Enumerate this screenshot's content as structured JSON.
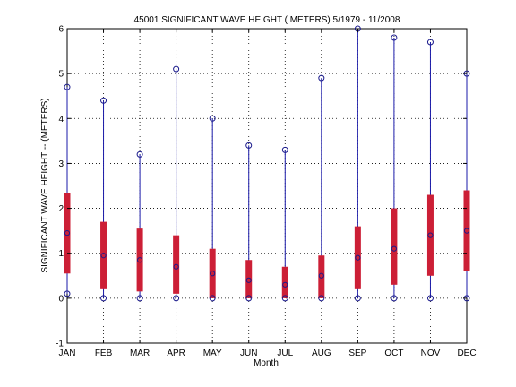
{
  "chart_data": {
    "type": "box",
    "title": "45001  SIGNIFICANT WAVE HEIGHT ( METERS) 5/1979 - 11/2008",
    "xlabel": "Month",
    "ylabel": "SIGNIFICANT WAVE HEIGHT -- (METERS)",
    "ylim": [
      -1,
      6
    ],
    "yticks": [
      "-1",
      "0",
      "1",
      "2",
      "3",
      "4",
      "5",
      "6"
    ],
    "grid": true,
    "categories": [
      "JAN",
      "FEB",
      "MAR",
      "APR",
      "MAY",
      "JUN",
      "JUL",
      "AUG",
      "SEP",
      "OCT",
      "NOV",
      "DEC"
    ],
    "min": [
      0.1,
      0.0,
      0.0,
      0.0,
      0.0,
      0.0,
      0.0,
      0.0,
      0.0,
      0.0,
      0.0,
      0.0
    ],
    "q1": [
      0.55,
      0.2,
      0.15,
      0.1,
      0.0,
      0.0,
      0.0,
      0.0,
      0.2,
      0.3,
      0.5,
      0.6
    ],
    "median": [
      1.45,
      0.95,
      0.85,
      0.7,
      0.55,
      0.4,
      0.3,
      0.5,
      0.9,
      1.1,
      1.4,
      1.5
    ],
    "q3": [
      2.35,
      1.7,
      1.55,
      1.4,
      1.1,
      0.85,
      0.7,
      0.95,
      1.6,
      2.0,
      2.3,
      2.4
    ],
    "max": [
      4.7,
      4.4,
      3.2,
      5.1,
      4.0,
      3.4,
      3.3,
      4.9,
      6.0,
      5.8,
      5.7,
      5.0
    ],
    "colors": {
      "whisker": "#1a1aa8",
      "box": "#cc1f36",
      "marker": "#1a1a8c",
      "grid": "#000000"
    }
  }
}
